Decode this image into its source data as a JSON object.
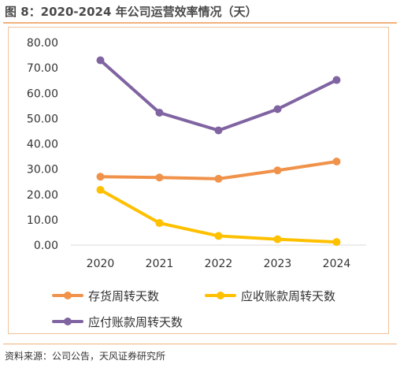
{
  "figure": {
    "title": "图 8：2020-2024 年公司运营效率情况（天）",
    "source": "资料来源：公司公告，天风证券研究所"
  },
  "colors": {
    "accent_rule": "#f1b27c",
    "series_1": "#f0924a",
    "series_2": "#ffc000",
    "series_3": "#8064a2"
  },
  "chart_data": {
    "type": "line",
    "x": [
      "2020",
      "2021",
      "2022",
      "2023",
      "2024"
    ],
    "ylim": [
      0,
      80
    ],
    "yticks": [
      "0.00",
      "10.00",
      "20.00",
      "30.00",
      "40.00",
      "50.00",
      "60.00",
      "70.00",
      "80.00"
    ],
    "grid": false,
    "legend_position": "bottom",
    "series": [
      {
        "name": "存货周转天数",
        "color": "#f0924a",
        "values": [
          27.0,
          26.7,
          26.2,
          29.5,
          33.0
        ]
      },
      {
        "name": "应收账款周转天数",
        "color": "#ffc000",
        "values": [
          21.8,
          8.7,
          3.6,
          2.3,
          1.2
        ]
      },
      {
        "name": "应付账款周转天数",
        "color": "#8064a2",
        "values": [
          73.0,
          52.3,
          45.3,
          53.7,
          65.2
        ]
      }
    ]
  }
}
